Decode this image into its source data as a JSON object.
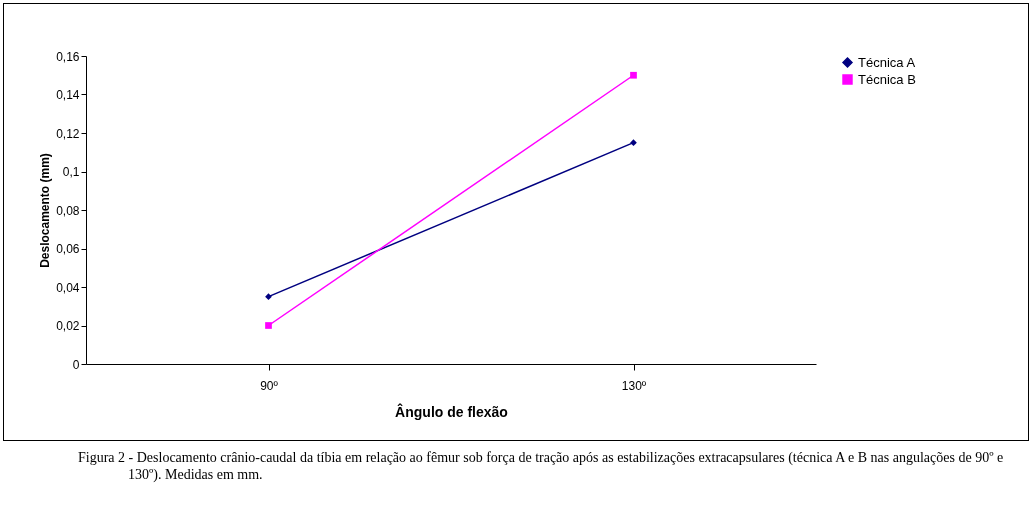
{
  "chart_data": {
    "type": "line",
    "xlabel": "Ângulo de flexão",
    "ylabel": "Deslocamento (mm)",
    "categories": [
      "90º",
      "130º"
    ],
    "series": [
      {
        "name": "Técnica A",
        "color": "#000080",
        "marker": "diamond",
        "values": [
          0.035,
          0.115
        ]
      },
      {
        "name": "Técnica B",
        "color": "#ff00ff",
        "marker": "square",
        "values": [
          0.02,
          0.15
        ]
      }
    ],
    "ylim": [
      0,
      0.16
    ],
    "yticks": [
      0,
      {
        "value": 0.02,
        "label": "0,02"
      },
      {
        "value": 0.04,
        "label": "0,04"
      },
      {
        "value": 0.06,
        "label": "0,06"
      },
      {
        "value": 0.08,
        "label": "0,08"
      },
      {
        "value": 0.1,
        "label": "0,1"
      },
      {
        "value": 0.12,
        "label": "0,12"
      },
      {
        "value": 0.14,
        "label": "0,14"
      },
      {
        "value": 0.16,
        "label": "0,16"
      }
    ],
    "grid": false,
    "legend": "right",
    "line_style": "solid",
    "annotations": [
      "Figura 2 - Deslocamento crânio-caudal da tíbia em relação ao fêmur sob força de tração após as estabilizações extracapsulares (técnica A e B nas angulações de 90º e 130º). Medidas em mm."
    ]
  }
}
